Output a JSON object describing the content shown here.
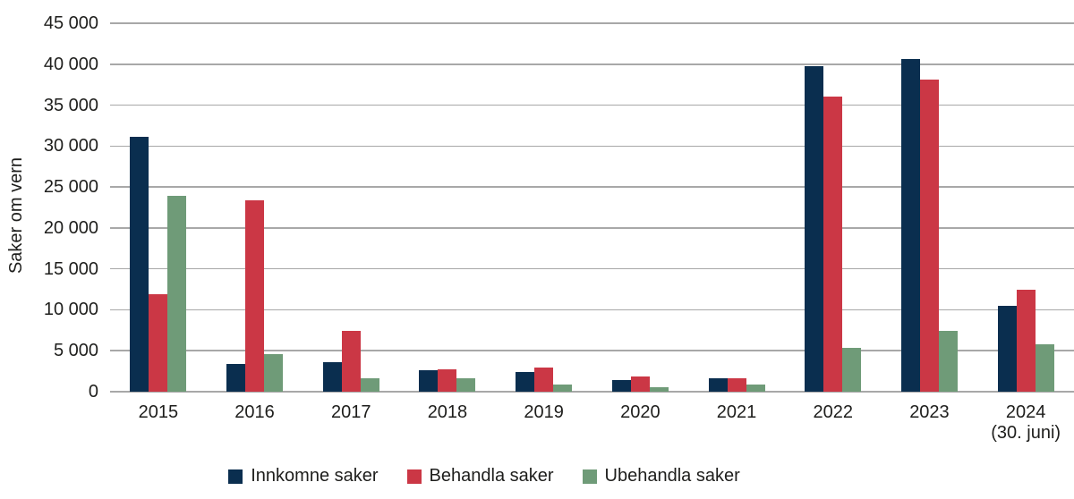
{
  "figure": {
    "background": "#ffffff",
    "text_color": "#1e1e1c",
    "gridline_color": "#a8a8a8"
  },
  "chart_data": {
    "type": "bar",
    "title": "",
    "xlabel": "",
    "ylabel": "Saker om vern",
    "ylim": [
      0,
      45000
    ],
    "ytick_step": 5000,
    "ytick_labels": [
      "0",
      "5 000",
      "10 000",
      "15 000",
      "20 000",
      "25 000",
      "30 000",
      "35 000",
      "40 000",
      "45 000"
    ],
    "grid": true,
    "legend_position": "bottom",
    "categories": [
      "2015",
      "2016",
      "2017",
      "2018",
      "2019",
      "2020",
      "2021",
      "2022",
      "2023",
      "2024"
    ],
    "category_sublabels": [
      "",
      "",
      "",
      "",
      "",
      "",
      "",
      "",
      "",
      "(30. juni)"
    ],
    "series": [
      {
        "name": "Innkomne saker",
        "color": "#0a2e4f",
        "values": [
          31100,
          3400,
          3600,
          2600,
          2400,
          1400,
          1600,
          39800,
          40600,
          10500
        ]
      },
      {
        "name": "Behandla saker",
        "color": "#cb3745",
        "values": [
          11900,
          23400,
          7400,
          2700,
          2900,
          1900,
          1600,
          36000,
          38100,
          12400
        ]
      },
      {
        "name": "Ubehandla saker",
        "color": "#6f9b78",
        "values": [
          23900,
          4600,
          1600,
          1600,
          900,
          600,
          900,
          5400,
          7400,
          5800
        ]
      }
    ]
  }
}
